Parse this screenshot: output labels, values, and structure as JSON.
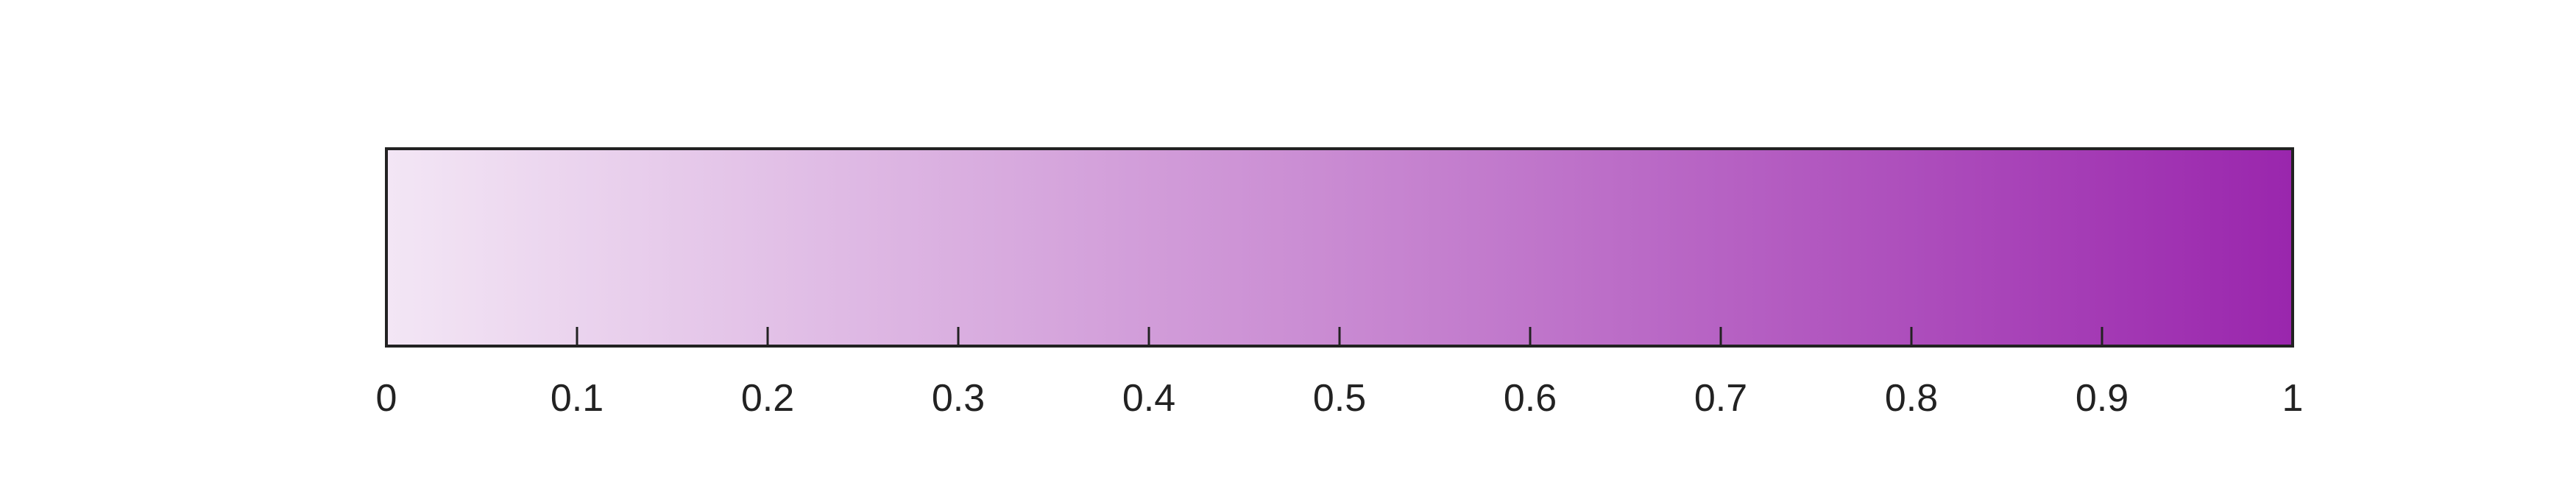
{
  "chart_data": {
    "type": "heatmap",
    "colorbar": {
      "orientation": "horizontal",
      "range": [
        0,
        1
      ],
      "color_min": "#f3e6f5",
      "color_mid": "#c98ad2",
      "color_max": "#9a26ad",
      "ticks": [
        0,
        0.1,
        0.2,
        0.3,
        0.4,
        0.5,
        0.6,
        0.7,
        0.8,
        0.9,
        1
      ],
      "tick_labels": [
        "0",
        "0.1",
        "0.2",
        "0.3",
        "0.4",
        "0.5",
        "0.6",
        "0.7",
        "0.8",
        "0.9",
        "1"
      ]
    }
  }
}
